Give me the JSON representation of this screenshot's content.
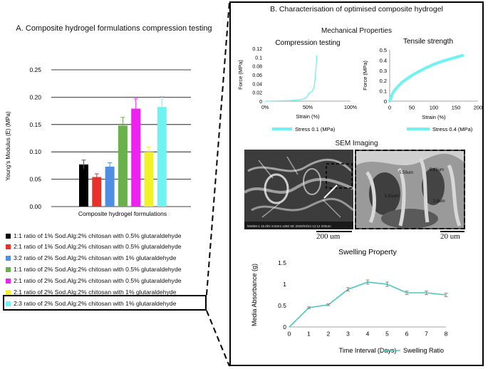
{
  "panel_a": {
    "title": "A. Composite hydrogel formulations compression testing"
  },
  "panel_b": {
    "title": "B. Characterisation of optimised composite hydrogel",
    "mechanical_title": "Mechanical Properties",
    "sem_title": "SEM Imaging",
    "sem_scale_1": "200 um",
    "sem_scale_2": "20 um",
    "sem_measure_1": "5.59um",
    "sem_measure_2": "5.61um",
    "sem_measure_3": "5.61um",
    "sem_measure_4": "2.8um",
    "sem_footer": "NW6M-1 15.0kV 8.6mm x250 SE 2020/03/24 12:12         200um"
  },
  "colors": {
    "black": "#000000",
    "red": "#e8312b",
    "blue": "#4f8ee3",
    "green": "#6ab04c",
    "magenta": "#ee22ee",
    "yellow": "#f2f22a",
    "cyan": "#6ff2f2",
    "teal": "#48c9bd"
  },
  "chart_data": [
    {
      "id": "young_modulus",
      "type": "bar",
      "title": "",
      "xlabel": "Composite hydrogel formulations",
      "ylabel": "Young's Modulus (E) (MPa)",
      "ylim": [
        0,
        0.25
      ],
      "yticks": [
        "0.00",
        "0.05",
        "0.10",
        "0.15",
        "0.20",
        "0.25"
      ],
      "grid": true,
      "legend_position": "below",
      "series": [
        {
          "name": "1:1 ratio of 1% Sod.Alg:2% chitosan with 0.5% glutaraldehyde",
          "value": 0.077,
          "error": 0.008,
          "color": "#000000"
        },
        {
          "name": "2:1 ratio of 1% Sod.Alg:2% chitosan with 0.5% glutaraldehyde",
          "value": 0.054,
          "error": 0.006,
          "color": "#e8312b"
        },
        {
          "name": "3:2 ratio of 2% Sod.Alg:2% chitosan with 1% glutaraldehyde",
          "value": 0.073,
          "error": 0.007,
          "color": "#4f8ee3"
        },
        {
          "name": "1:1 ratio of 2% Sod.Alg:2% chitosan with 0.5% glutaraldehyde",
          "value": 0.148,
          "error": 0.015,
          "color": "#6ab04c"
        },
        {
          "name": "2:1 ratio of 2% Sod.Alg:2% chitosan with 0.5% glutaraldehyde",
          "value": 0.179,
          "error": 0.018,
          "color": "#ee22ee"
        },
        {
          "name": "2:1 ratio of 2% Sod.Alg:2% chitosan with 1% glutaraldehyde",
          "value": 0.1,
          "error": 0.009,
          "color": "#f2f22a"
        },
        {
          "name": "2:3 ratio of 2% Sod.Alg:2% chitosan with 1% glutaraldehyde",
          "value": 0.182,
          "error": 0.019,
          "color": "#6ff2f2"
        }
      ],
      "highlighted": "2:3 ratio of 2% Sod.Alg:2% chitosan with 1% glutaraldehyde"
    },
    {
      "id": "compression",
      "type": "line",
      "title": "Compression testing",
      "xlabel": "Strain (%)",
      "ylabel": "Force (MPa)",
      "xlim": [
        0,
        1
      ],
      "ylim": [
        0,
        0.12
      ],
      "xticks": [
        "0%",
        "50%",
        "100%"
      ],
      "yticks": [
        "0",
        "0.02",
        "0.04",
        "0.06",
        "0.08",
        "0.1",
        "0.12"
      ],
      "legend": "Stress 0.1 (MPa)",
      "points": [
        [
          0,
          0
        ],
        [
          0.1,
          0.0005
        ],
        [
          0.2,
          0.001
        ],
        [
          0.3,
          0.0015
        ],
        [
          0.4,
          0.003
        ],
        [
          0.45,
          0.005
        ],
        [
          0.48,
          0.008
        ],
        [
          0.5,
          0.013
        ],
        [
          0.51,
          0.018
        ],
        [
          0.52,
          0.017
        ],
        [
          0.53,
          0.02
        ],
        [
          0.55,
          0.022
        ],
        [
          0.57,
          0.03
        ],
        [
          0.58,
          0.04
        ],
        [
          0.59,
          0.06
        ],
        [
          0.6,
          0.085
        ],
        [
          0.605,
          0.104
        ]
      ]
    },
    {
      "id": "tensile",
      "type": "line",
      "title": "Tensile strength",
      "xlabel": "Strain (%)",
      "ylabel": "Force (MPa)",
      "xlim": [
        0,
        200
      ],
      "ylim": [
        0,
        0.5
      ],
      "xticks": [
        "0",
        "50",
        "100",
        "150",
        "200"
      ],
      "yticks": [
        "0",
        "0.1",
        "0.2",
        "0.3",
        "0.4",
        "0.5"
      ],
      "legend": "Stress 0.4 (MPa)",
      "points": [
        [
          0,
          0
        ],
        [
          5,
          0.06
        ],
        [
          10,
          0.1
        ],
        [
          20,
          0.15
        ],
        [
          30,
          0.19
        ],
        [
          40,
          0.22
        ],
        [
          50,
          0.25
        ],
        [
          60,
          0.275
        ],
        [
          80,
          0.32
        ],
        [
          100,
          0.36
        ],
        [
          120,
          0.39
        ],
        [
          140,
          0.415
        ],
        [
          160,
          0.44
        ],
        [
          165,
          0.445
        ]
      ]
    },
    {
      "id": "swelling",
      "type": "line",
      "title": "Swelling Property",
      "xlabel": "Time Interval (Days)",
      "ylabel": "Media Absorbance (g)",
      "xlim": [
        0,
        8
      ],
      "ylim": [
        0,
        1.5
      ],
      "xticks": [
        "0",
        "1",
        "2",
        "3",
        "4",
        "5",
        "6",
        "7",
        "8"
      ],
      "yticks": [
        "0",
        "0.5",
        "1",
        "1.5"
      ],
      "legend": "Swelling Ratio",
      "x": [
        0,
        1,
        2,
        3,
        4,
        5,
        6,
        7,
        8
      ],
      "y": [
        0,
        0.45,
        0.52,
        0.88,
        1.05,
        1.0,
        0.8,
        0.8,
        0.75
      ],
      "errors": [
        0,
        0.02,
        0.02,
        0.04,
        0.05,
        0.05,
        0.04,
        0.04,
        0.04
      ]
    }
  ]
}
